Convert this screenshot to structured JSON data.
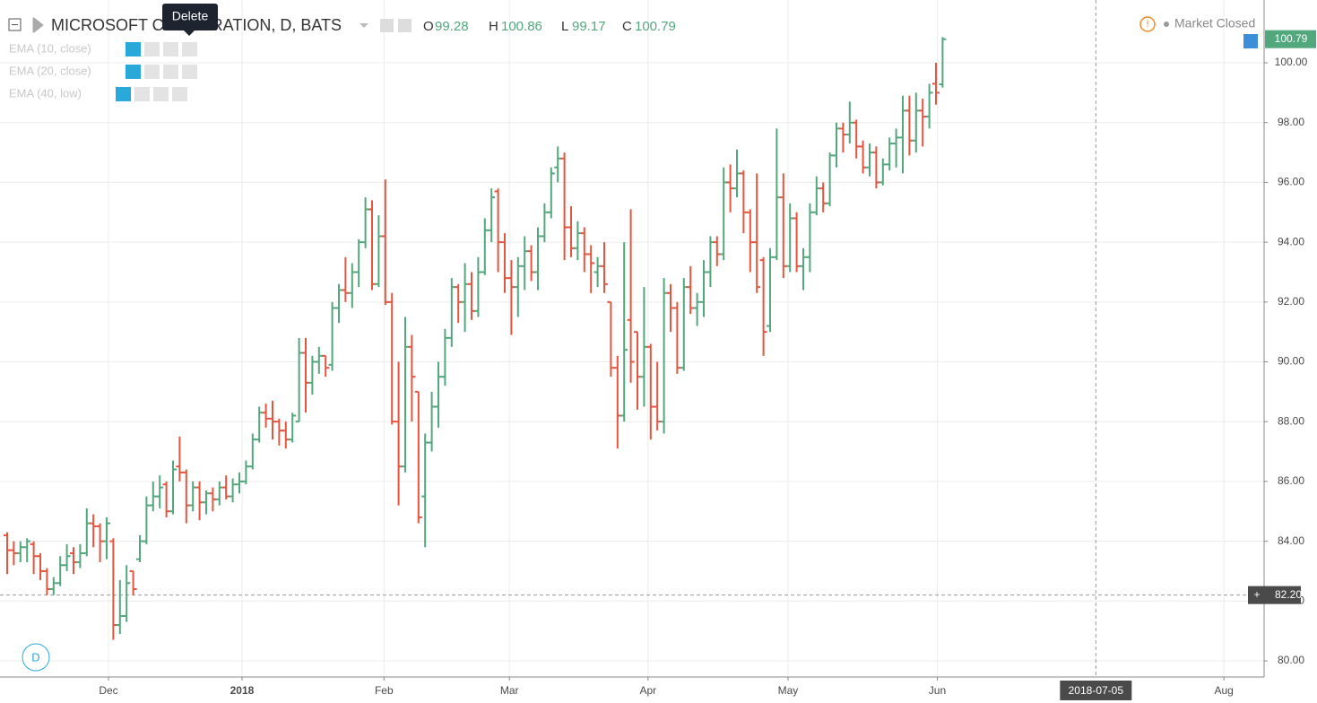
{
  "chart_data": {
    "type": "ohlc",
    "title": "MICROSOFT CORPORATION, D, BATS",
    "ohlc_letters": [
      "O",
      "H",
      "L",
      "C"
    ],
    "indicators": [
      "EMA (10, close)",
      "EMA (20, close)",
      "EMA (40, low)"
    ],
    "status": "Market Closed",
    "tooltip": "Delete",
    "interval_button": "D",
    "up_color": "#53a77c",
    "down_color": "#e4553f",
    "grid": true,
    "ylim": [
      79.46,
      102.1
    ],
    "yticks": [
      {
        "value": 80,
        "label": "80.00"
      },
      {
        "value": 82,
        "label": "82.00"
      },
      {
        "value": 84,
        "label": "84.00"
      },
      {
        "value": 86,
        "label": "86.00"
      },
      {
        "value": 88,
        "label": "88.00"
      },
      {
        "value": 90,
        "label": "90.00"
      },
      {
        "value": 92,
        "label": "92.00"
      },
      {
        "value": 94,
        "label": "94.00"
      },
      {
        "value": 96,
        "label": "96.00"
      },
      {
        "value": 98,
        "label": "98.00"
      },
      {
        "value": 100,
        "label": "100.00"
      }
    ],
    "xlim": [
      -1.08,
      189.46
    ],
    "xticks": [
      {
        "value": 15.27,
        "label": "Dec"
      },
      {
        "value": 35.4,
        "label": "2018"
      },
      {
        "value": 56.8,
        "label": "Feb"
      },
      {
        "value": 75.7,
        "label": "Mar"
      },
      {
        "value": 96.6,
        "label": "Apr"
      },
      {
        "value": 117.7,
        "label": "May"
      },
      {
        "value": 140.2,
        "label": "Jun"
      },
      {
        "value": 183.4,
        "label": "Aug"
      }
    ],
    "crosshair": {
      "y": {
        "value": 82.2,
        "label": "82.20"
      },
      "x": {
        "value": 164.1,
        "label": "2018-07-05"
      }
    },
    "ohlc": [
      [
        84.2,
        84.3,
        82.9,
        83.7
      ],
      [
        83.7,
        84.0,
        83.2,
        83.6
      ],
      [
        83.6,
        84.0,
        83.3,
        83.8
      ],
      [
        83.8,
        84.1,
        83.3,
        84.0
      ],
      [
        83.9,
        84.0,
        82.9,
        83.5
      ],
      [
        83.5,
        83.6,
        82.7,
        83.0
      ],
      [
        83.0,
        83.1,
        82.2,
        82.4
      ],
      [
        82.4,
        82.8,
        82.2,
        82.6
      ],
      [
        82.6,
        83.5,
        82.5,
        83.2
      ],
      [
        83.2,
        83.9,
        83.0,
        83.5
      ],
      [
        83.6,
        83.8,
        82.9,
        83.3
      ],
      [
        83.3,
        83.9,
        83.1,
        83.6
      ],
      [
        83.6,
        85.1,
        83.5,
        84.6
      ],
      [
        84.6,
        84.9,
        83.8,
        84.5
      ],
      [
        84.5,
        84.6,
        83.3,
        84.0
      ],
      [
        84.0,
        84.8,
        83.4,
        84.6
      ],
      [
        84.0,
        84.1,
        80.7,
        81.2
      ],
      [
        81.2,
        82.7,
        80.9,
        81.5
      ],
      [
        81.5,
        83.2,
        81.3,
        82.6
      ],
      [
        83.0,
        83.0,
        82.2,
        82.4
      ],
      [
        83.4,
        84.2,
        83.3,
        84.0
      ],
      [
        84.0,
        85.5,
        83.9,
        85.2
      ],
      [
        85.2,
        86.0,
        85.0,
        85.5
      ],
      [
        85.5,
        86.2,
        85.1,
        85.8
      ],
      [
        85.9,
        86.0,
        84.8,
        85.0
      ],
      [
        85.0,
        86.7,
        84.9,
        86.4
      ],
      [
        86.5,
        87.5,
        86.0,
        86.3
      ],
      [
        86.3,
        86.4,
        84.6,
        85.2
      ],
      [
        85.2,
        86.0,
        85.0,
        85.8
      ],
      [
        85.8,
        86.0,
        84.7,
        85.3
      ],
      [
        85.3,
        85.7,
        84.9,
        85.6
      ],
      [
        85.6,
        85.8,
        85.0,
        85.4
      ],
      [
        85.4,
        86.0,
        85.2,
        85.8
      ],
      [
        85.8,
        86.2,
        85.4,
        85.5
      ],
      [
        85.5,
        86.1,
        85.3,
        85.9
      ],
      [
        85.9,
        86.3,
        85.6,
        86.0
      ],
      [
        86.0,
        86.7,
        85.9,
        86.5
      ],
      [
        86.5,
        87.6,
        86.4,
        87.4
      ],
      [
        87.4,
        88.5,
        87.3,
        88.3
      ],
      [
        88.3,
        88.6,
        87.8,
        88.1
      ],
      [
        88.1,
        88.7,
        87.4,
        88.0
      ],
      [
        88.0,
        88.1,
        87.2,
        87.7
      ],
      [
        87.7,
        88.0,
        87.1,
        87.4
      ],
      [
        87.4,
        88.3,
        87.3,
        88.2
      ],
      [
        88.0,
        90.8,
        88.0,
        90.3
      ],
      [
        90.3,
        90.8,
        88.3,
        89.3
      ],
      [
        89.3,
        90.2,
        88.9,
        90.0
      ],
      [
        90.0,
        90.5,
        89.6,
        90.2
      ],
      [
        90.2,
        90.2,
        89.5,
        89.8
      ],
      [
        89.9,
        92.0,
        89.7,
        91.8
      ],
      [
        91.8,
        92.6,
        91.3,
        92.4
      ],
      [
        92.4,
        93.5,
        92.0,
        92.3
      ],
      [
        92.3,
        93.3,
        91.8,
        93.0
      ],
      [
        93.0,
        94.1,
        92.5,
        94.0
      ],
      [
        94.0,
        95.5,
        93.8,
        95.1
      ],
      [
        95.1,
        95.4,
        92.4,
        92.6
      ],
      [
        92.6,
        94.9,
        92.5,
        94.2
      ],
      [
        94.2,
        96.1,
        91.9,
        92.0
      ],
      [
        92.0,
        92.3,
        87.9,
        88.0
      ],
      [
        88.0,
        90.0,
        85.2,
        86.5
      ],
      [
        86.5,
        91.5,
        86.3,
        90.5
      ],
      [
        90.5,
        90.9,
        88.0,
        89.5
      ],
      [
        89.0,
        89.0,
        84.6,
        84.8
      ],
      [
        85.5,
        87.6,
        83.8,
        87.3
      ],
      [
        87.3,
        89.0,
        87.0,
        88.5
      ],
      [
        88.5,
        90.0,
        87.8,
        89.5
      ],
      [
        89.5,
        91.1,
        89.2,
        90.8
      ],
      [
        90.8,
        92.8,
        90.5,
        92.5
      ],
      [
        92.5,
        92.6,
        91.3,
        92.0
      ],
      [
        92.0,
        93.3,
        91.0,
        92.6
      ],
      [
        92.6,
        93.0,
        91.4,
        91.7
      ],
      [
        91.7,
        93.5,
        91.5,
        93.0
      ],
      [
        93.0,
        94.8,
        92.9,
        94.4
      ],
      [
        94.4,
        95.8,
        94.0,
        95.5
      ],
      [
        95.7,
        95.8,
        93.0,
        94.0
      ],
      [
        94.0,
        94.3,
        92.3,
        92.8
      ],
      [
        92.8,
        93.4,
        90.9,
        92.5
      ],
      [
        92.5,
        93.5,
        91.5,
        93.2
      ],
      [
        93.2,
        94.2,
        92.4,
        93.7
      ],
      [
        93.7,
        93.9,
        92.7,
        93.0
      ],
      [
        93.0,
        94.5,
        92.4,
        94.2
      ],
      [
        94.2,
        95.3,
        94.0,
        95.0
      ],
      [
        95.0,
        96.5,
        94.8,
        96.3
      ],
      [
        96.5,
        97.2,
        96.0,
        96.8
      ],
      [
        96.8,
        97.0,
        93.4,
        94.5
      ],
      [
        94.5,
        95.2,
        93.5,
        93.8
      ],
      [
        93.8,
        94.7,
        93.4,
        94.3
      ],
      [
        94.3,
        94.5,
        93.0,
        93.6
      ],
      [
        93.6,
        93.9,
        92.3,
        93.3
      ],
      [
        93.0,
        93.5,
        92.5,
        93.2
      ],
      [
        93.2,
        94.0,
        92.3,
        92.6
      ],
      [
        92.0,
        92.0,
        89.5,
        89.8
      ],
      [
        89.8,
        90.2,
        87.1,
        88.2
      ],
      [
        88.2,
        94.0,
        88.0,
        90.4
      ],
      [
        91.4,
        95.1,
        89.3,
        90.0
      ],
      [
        91.0,
        91.0,
        88.4,
        89.5
      ],
      [
        89.5,
        92.5,
        88.5,
        90.5
      ],
      [
        90.5,
        90.6,
        87.4,
        88.5
      ],
      [
        88.5,
        90.0,
        87.7,
        88.0
      ],
      [
        88.0,
        92.8,
        87.6,
        92.3
      ],
      [
        92.3,
        92.6,
        91.0,
        91.8
      ],
      [
        91.8,
        92.0,
        89.6,
        89.8
      ],
      [
        89.8,
        92.8,
        89.7,
        92.5
      ],
      [
        92.5,
        93.2,
        91.6,
        91.8
      ],
      [
        91.8,
        92.3,
        91.2,
        92.0
      ],
      [
        92.0,
        93.4,
        91.5,
        93.0
      ],
      [
        93.0,
        94.2,
        92.5,
        94.0
      ],
      [
        94.0,
        94.2,
        93.2,
        93.6
      ],
      [
        93.6,
        96.5,
        93.4,
        96.0
      ],
      [
        96.0,
        96.6,
        95.0,
        95.8
      ],
      [
        95.8,
        97.1,
        95.5,
        96.3
      ],
      [
        96.3,
        96.4,
        94.3,
        95.0
      ],
      [
        95.0,
        95.1,
        93.0,
        94.0
      ],
      [
        94.0,
        96.3,
        92.3,
        92.5
      ],
      [
        93.4,
        93.5,
        90.2,
        91.0
      ],
      [
        91.2,
        93.8,
        91.0,
        93.5
      ],
      [
        93.5,
        97.8,
        93.4,
        95.5
      ],
      [
        95.5,
        96.3,
        92.8,
        93.2
      ],
      [
        93.2,
        95.3,
        93.0,
        94.8
      ],
      [
        94.8,
        95.0,
        93.0,
        93.2
      ],
      [
        93.2,
        93.8,
        92.4,
        93.5
      ],
      [
        93.5,
        95.3,
        93.0,
        95.0
      ],
      [
        95.0,
        96.2,
        94.9,
        95.8
      ],
      [
        95.8,
        96.0,
        95.0,
        95.3
      ],
      [
        95.3,
        97.0,
        95.2,
        96.9
      ],
      [
        96.9,
        98.0,
        96.5,
        97.8
      ],
      [
        97.8,
        98.0,
        97.0,
        97.6
      ],
      [
        97.6,
        98.7,
        97.3,
        98.0
      ],
      [
        98.0,
        98.1,
        96.8,
        97.2
      ],
      [
        97.2,
        97.4,
        96.3,
        96.5
      ],
      [
        96.5,
        97.3,
        96.2,
        97.0
      ],
      [
        97.0,
        97.2,
        95.8,
        96.0
      ],
      [
        96.0,
        96.8,
        95.9,
        96.6
      ],
      [
        96.6,
        97.5,
        96.4,
        97.3
      ],
      [
        97.3,
        97.8,
        96.5,
        97.5
      ],
      [
        97.5,
        98.9,
        96.3,
        98.4
      ],
      [
        98.4,
        98.9,
        96.9,
        97.4
      ],
      [
        97.4,
        99.0,
        97.0,
        98.4
      ],
      [
        98.4,
        98.8,
        97.2,
        98.2
      ],
      [
        98.2,
        99.3,
        97.8,
        99.0
      ],
      [
        99.3,
        100.0,
        98.6,
        99.0
      ],
      [
        99.28,
        100.86,
        99.17,
        100.79
      ]
    ]
  }
}
